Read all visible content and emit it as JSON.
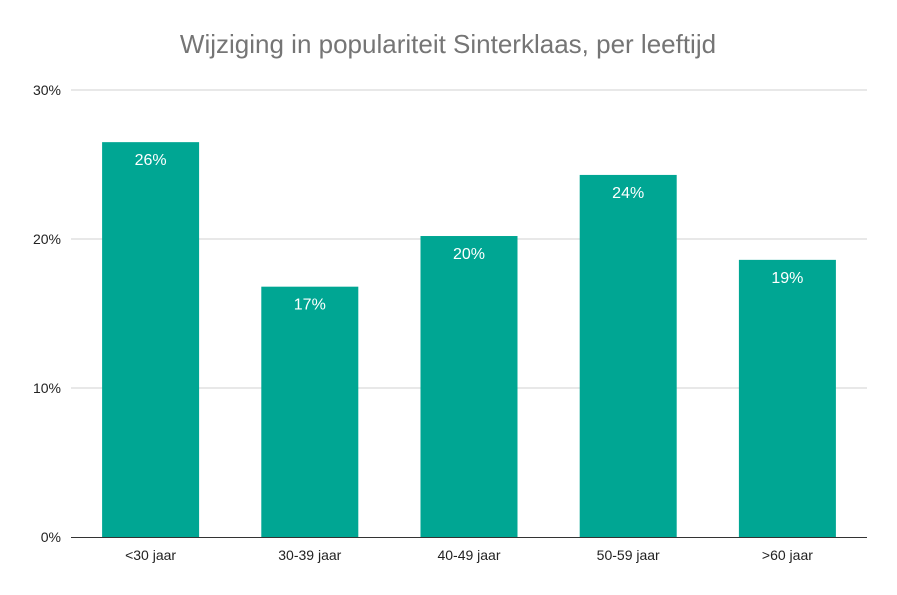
{
  "chart_data": {
    "type": "bar",
    "title": "Wijziging in populariteit Sinterklaas, per leeftijd",
    "xlabel": "",
    "ylabel": "",
    "categories": [
      "<30 jaar",
      "30-39 jaar",
      "40-49 jaar",
      "50-59 jaar",
      ">60 jaar"
    ],
    "values": [
      26.5,
      16.8,
      20.2,
      24.3,
      18.6
    ],
    "data_labels": [
      "26%",
      "17%",
      "20%",
      "24%",
      "19%"
    ],
    "ylim": [
      0,
      30
    ],
    "yticks": [
      0,
      10,
      20,
      30
    ],
    "ytick_labels": [
      "0%",
      "10%",
      "20%",
      "30%"
    ],
    "grid": true,
    "legend": "none",
    "bar_color": "#00A693"
  }
}
